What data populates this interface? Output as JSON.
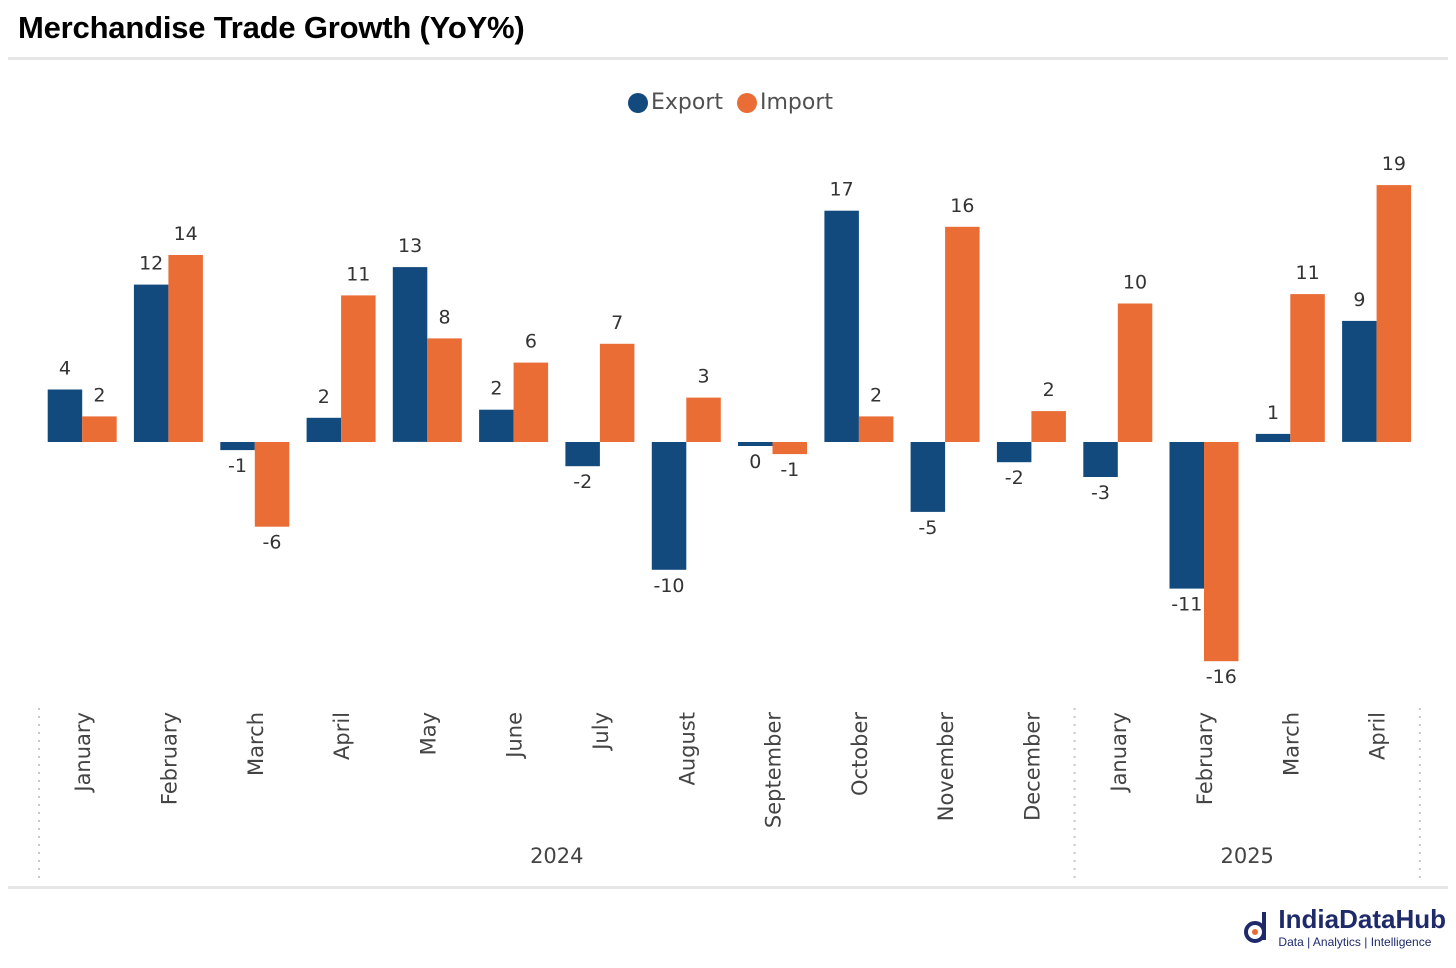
{
  "title": "Merchandise Trade Growth (YoY%)",
  "brand": {
    "name": "IndiaDataHub",
    "tagline": "Data | Analytics | Intelligence",
    "icon": "india-data-hub-logo-icon"
  },
  "colors": {
    "export": "#134a7e",
    "import": "#e96d35",
    "rule": "#e6e6e6",
    "separator": "#c8c8c8"
  },
  "chart_data": {
    "type": "bar",
    "title": "Merchandise Trade Growth (YoY%)",
    "xlabel": "",
    "ylabel": "",
    "legend_position": "top-center",
    "grid": false,
    "ylim": [
      -16,
      19
    ],
    "categories": [
      "January",
      "February",
      "March",
      "April",
      "May",
      "June",
      "July",
      "August",
      "September",
      "October",
      "November",
      "December",
      "January",
      "February",
      "March",
      "April"
    ],
    "groups": [
      {
        "label": "2024",
        "count": 12
      },
      {
        "label": "2025",
        "count": 4
      }
    ],
    "series": [
      {
        "name": "Export",
        "color": "#134a7e",
        "values": [
          4,
          12,
          -1,
          2,
          13,
          2,
          -2,
          -10,
          0,
          17,
          -5,
          -2,
          -3,
          -11,
          1,
          9
        ]
      },
      {
        "name": "Import",
        "color": "#e96d35",
        "values": [
          2,
          14,
          -6,
          11,
          8,
          6,
          7,
          3,
          -1,
          2,
          16,
          2,
          10,
          -16,
          11,
          19
        ]
      }
    ],
    "bar_values": {
      "Export": [
        3.9,
        11.7,
        -0.6,
        1.8,
        13.0,
        2.4,
        -1.8,
        -9.5,
        -0.3,
        17.2,
        -5.2,
        -1.5,
        -2.6,
        -10.9,
        0.6,
        9.0
      ],
      "Import": [
        1.9,
        13.9,
        -6.3,
        10.9,
        7.7,
        5.9,
        7.3,
        3.3,
        -0.9,
        1.9,
        16.0,
        2.3,
        10.3,
        -16.3,
        11.0,
        19.1
      ]
    }
  }
}
